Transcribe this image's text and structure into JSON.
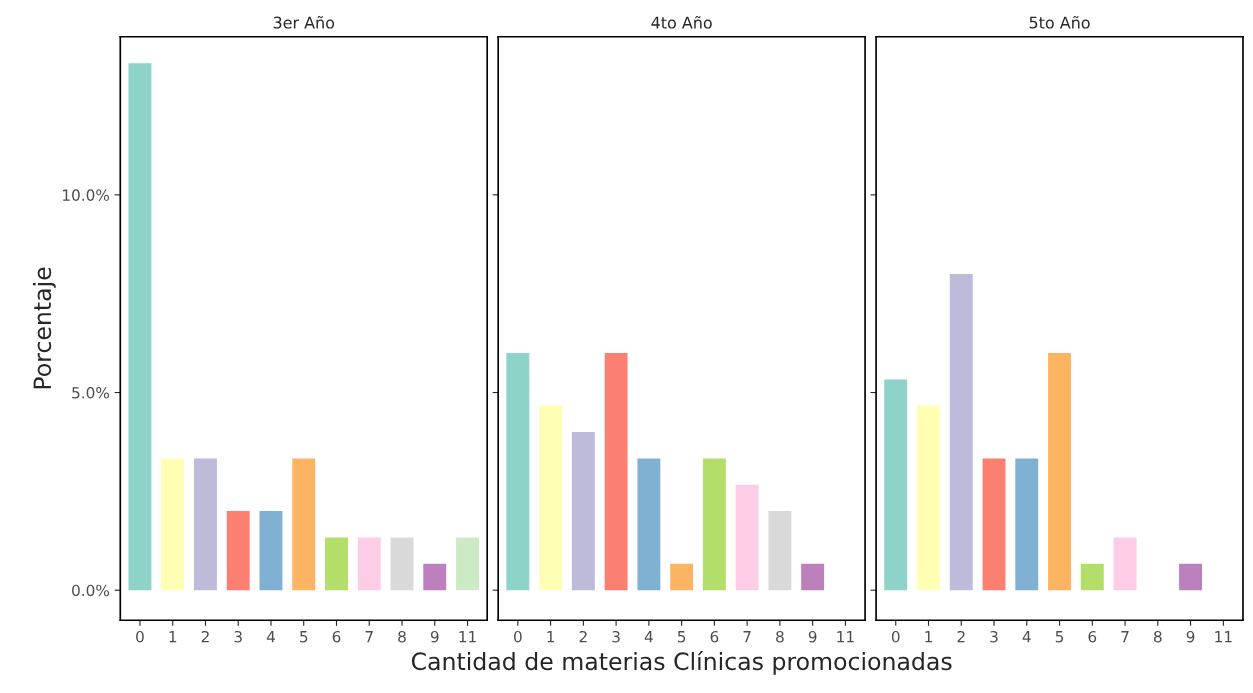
{
  "chart_data": [
    {
      "type": "bar",
      "title": "3er Año",
      "ylabel": "Porcentaje",
      "categories": [
        "0",
        "1",
        "2",
        "3",
        "4",
        "5",
        "6",
        "7",
        "8",
        "9",
        "11"
      ],
      "values": [
        13.33,
        3.33,
        3.33,
        2.0,
        2.0,
        3.33,
        1.33,
        1.33,
        1.33,
        0.67,
        1.33
      ],
      "colors": [
        "#8dd3c7",
        "#ffffb3",
        "#bebada",
        "#fb8072",
        "#80b1d3",
        "#fdb462",
        "#b3de69",
        "#fccde5",
        "#d9d9d9",
        "#bc80bd",
        "#ccebc5"
      ],
      "ylim": [
        -0.76,
        14.0
      ],
      "yticks": [
        {
          "value": 0,
          "label": "0.0%"
        },
        {
          "value": 5,
          "label": "5.0%"
        },
        {
          "value": 10,
          "label": "10.0%"
        }
      ]
    },
    {
      "type": "bar",
      "title": "4to Año",
      "xlabel": "Cantidad de materias Clínicas promocionadas",
      "categories": [
        "0",
        "1",
        "2",
        "3",
        "4",
        "5",
        "6",
        "7",
        "8",
        "9",
        "11"
      ],
      "values": [
        6.0,
        4.67,
        4.0,
        6.0,
        3.33,
        0.67,
        3.33,
        2.67,
        2.0,
        0.67,
        null
      ],
      "colors": [
        "#8dd3c7",
        "#ffffb3",
        "#bebada",
        "#fb8072",
        "#80b1d3",
        "#fdb462",
        "#b3de69",
        "#fccde5",
        "#d9d9d9",
        "#bc80bd",
        "#ccebc5"
      ],
      "ylim": [
        -0.76,
        14.0
      ],
      "yticks": [
        {
          "value": 0,
          "label": null
        },
        {
          "value": 5,
          "label": null
        },
        {
          "value": 10,
          "label": null
        }
      ],
      "tick_labels": "x"
    },
    {
      "type": "bar",
      "title": "5to Año",
      "categories": [
        "0",
        "1",
        "2",
        "3",
        "4",
        "5",
        "6",
        "7",
        "8",
        "9",
        "11"
      ],
      "values": [
        5.33,
        4.67,
        8.0,
        3.33,
        3.33,
        6.0,
        0.67,
        1.33,
        null,
        0.67,
        null
      ],
      "colors": [
        "#8dd3c7",
        "#ffffb3",
        "#bebada",
        "#fb8072",
        "#80b1d3",
        "#fdb462",
        "#b3de69",
        "#fccde5",
        "#d9d9d9",
        "#bc80bd",
        "#ccebc5"
      ],
      "ylim": [
        -0.76,
        14.0
      ],
      "yticks": [
        {
          "value": 0,
          "label": null
        },
        {
          "value": 5,
          "label": null
        },
        {
          "value": 10,
          "label": null
        }
      ],
      "tick_labels": "x"
    }
  ]
}
